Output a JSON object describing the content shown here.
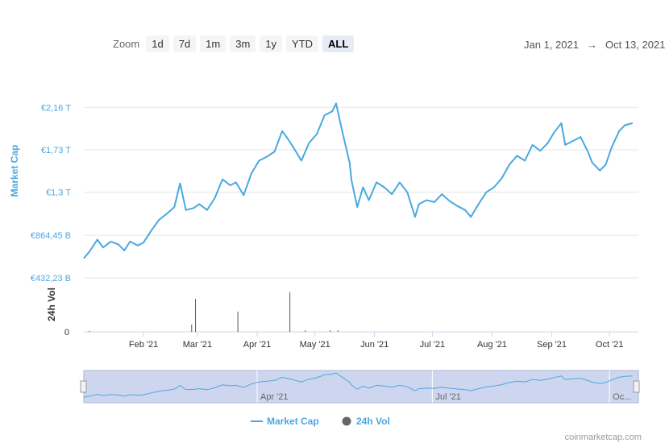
{
  "zoom": {
    "label": "Zoom",
    "buttons": [
      "1d",
      "7d",
      "1m",
      "3m",
      "1y",
      "YTD",
      "ALL"
    ],
    "active": "ALL"
  },
  "range": {
    "from": "Jan 1, 2021",
    "arrow": "→",
    "to": "Oct 13, 2021"
  },
  "credit": "coinmarketcap.com",
  "colors": {
    "market_cap": "#4aa8e0",
    "volume": "#555555",
    "navigator_bg": "#cdd6ee"
  },
  "chart_data": {
    "type": "line",
    "x_axis": {
      "ticks": [
        "Feb '21",
        "Mar '21",
        "Apr '21",
        "May '21",
        "Jun '21",
        "Jul '21",
        "Aug '21",
        "Sep '21",
        "Oct '21"
      ]
    },
    "y_axis": {
      "label": "Market Cap",
      "ticks": [
        "€432,23 B",
        "€864,45 B",
        "€1,3 T",
        "€1,73 T",
        "€2,16 T"
      ],
      "range_trillions": [
        0.432,
        2.16
      ]
    },
    "volume_axis": {
      "label": "24h Vol",
      "ticks": [
        "0"
      ]
    },
    "navigator_ticks": [
      "Apr '21",
      "Jul '21",
      "Oc..."
    ],
    "legend": [
      {
        "name": "Market Cap"
      },
      {
        "name": "24h Vol"
      }
    ],
    "series": [
      {
        "name": "Market Cap",
        "unit": "€ trillions",
        "points": [
          [
            "2021-01-01",
            0.63
          ],
          [
            "2021-01-04",
            0.7
          ],
          [
            "2021-01-08",
            0.82
          ],
          [
            "2021-01-11",
            0.74
          ],
          [
            "2021-01-15",
            0.8
          ],
          [
            "2021-01-19",
            0.77
          ],
          [
            "2021-01-22",
            0.71
          ],
          [
            "2021-01-25",
            0.8
          ],
          [
            "2021-01-29",
            0.76
          ],
          [
            "2021-02-01",
            0.79
          ],
          [
            "2021-02-05",
            0.91
          ],
          [
            "2021-02-09",
            1.02
          ],
          [
            "2021-02-13",
            1.08
          ],
          [
            "2021-02-17",
            1.15
          ],
          [
            "2021-02-20",
            1.39
          ],
          [
            "2021-02-23",
            1.12
          ],
          [
            "2021-02-27",
            1.14
          ],
          [
            "2021-03-02",
            1.18
          ],
          [
            "2021-03-06",
            1.12
          ],
          [
            "2021-03-10",
            1.24
          ],
          [
            "2021-03-14",
            1.43
          ],
          [
            "2021-03-18",
            1.37
          ],
          [
            "2021-03-21",
            1.4
          ],
          [
            "2021-03-25",
            1.27
          ],
          [
            "2021-03-29",
            1.49
          ],
          [
            "2021-04-02",
            1.62
          ],
          [
            "2021-04-06",
            1.66
          ],
          [
            "2021-04-10",
            1.71
          ],
          [
            "2021-04-14",
            1.92
          ],
          [
            "2021-04-17",
            1.84
          ],
          [
            "2021-04-20",
            1.75
          ],
          [
            "2021-04-24",
            1.62
          ],
          [
            "2021-04-28",
            1.8
          ],
          [
            "2021-05-02",
            1.89
          ],
          [
            "2021-05-06",
            2.08
          ],
          [
            "2021-05-10",
            2.12
          ],
          [
            "2021-05-12",
            2.2
          ],
          [
            "2021-05-16",
            1.85
          ],
          [
            "2021-05-19",
            1.6
          ],
          [
            "2021-05-20",
            1.42
          ],
          [
            "2021-05-23",
            1.15
          ],
          [
            "2021-05-26",
            1.35
          ],
          [
            "2021-05-29",
            1.22
          ],
          [
            "2021-06-02",
            1.4
          ],
          [
            "2021-06-06",
            1.35
          ],
          [
            "2021-06-10",
            1.28
          ],
          [
            "2021-06-14",
            1.4
          ],
          [
            "2021-06-18",
            1.3
          ],
          [
            "2021-06-22",
            1.05
          ],
          [
            "2021-06-24",
            1.18
          ],
          [
            "2021-06-28",
            1.22
          ],
          [
            "2021-07-02",
            1.2
          ],
          [
            "2021-07-06",
            1.28
          ],
          [
            "2021-07-10",
            1.21
          ],
          [
            "2021-07-14",
            1.16
          ],
          [
            "2021-07-18",
            1.12
          ],
          [
            "2021-07-21",
            1.05
          ],
          [
            "2021-07-25",
            1.18
          ],
          [
            "2021-07-29",
            1.3
          ],
          [
            "2021-08-02",
            1.35
          ],
          [
            "2021-08-06",
            1.44
          ],
          [
            "2021-08-10",
            1.58
          ],
          [
            "2021-08-14",
            1.67
          ],
          [
            "2021-08-18",
            1.62
          ],
          [
            "2021-08-22",
            1.78
          ],
          [
            "2021-08-26",
            1.72
          ],
          [
            "2021-08-30",
            1.8
          ],
          [
            "2021-09-02",
            1.9
          ],
          [
            "2021-09-06",
            2.0
          ],
          [
            "2021-09-08",
            1.78
          ],
          [
            "2021-09-12",
            1.82
          ],
          [
            "2021-09-16",
            1.86
          ],
          [
            "2021-09-20",
            1.7
          ],
          [
            "2021-09-22",
            1.6
          ],
          [
            "2021-09-26",
            1.52
          ],
          [
            "2021-09-29",
            1.58
          ],
          [
            "2021-10-02",
            1.75
          ],
          [
            "2021-10-06",
            1.92
          ],
          [
            "2021-10-09",
            1.98
          ],
          [
            "2021-10-13",
            2.0
          ]
        ]
      },
      {
        "name": "24h Vol",
        "bars": [
          [
            "2021-01-04",
            0.02
          ],
          [
            "2021-02-26",
            0.15
          ],
          [
            "2021-02-28",
            0.68
          ],
          [
            "2021-03-22",
            0.42
          ],
          [
            "2021-04-18",
            0.82
          ],
          [
            "2021-04-26",
            0.03
          ],
          [
            "2021-05-09",
            0.03
          ],
          [
            "2021-05-13",
            0.03
          ]
        ]
      }
    ]
  }
}
